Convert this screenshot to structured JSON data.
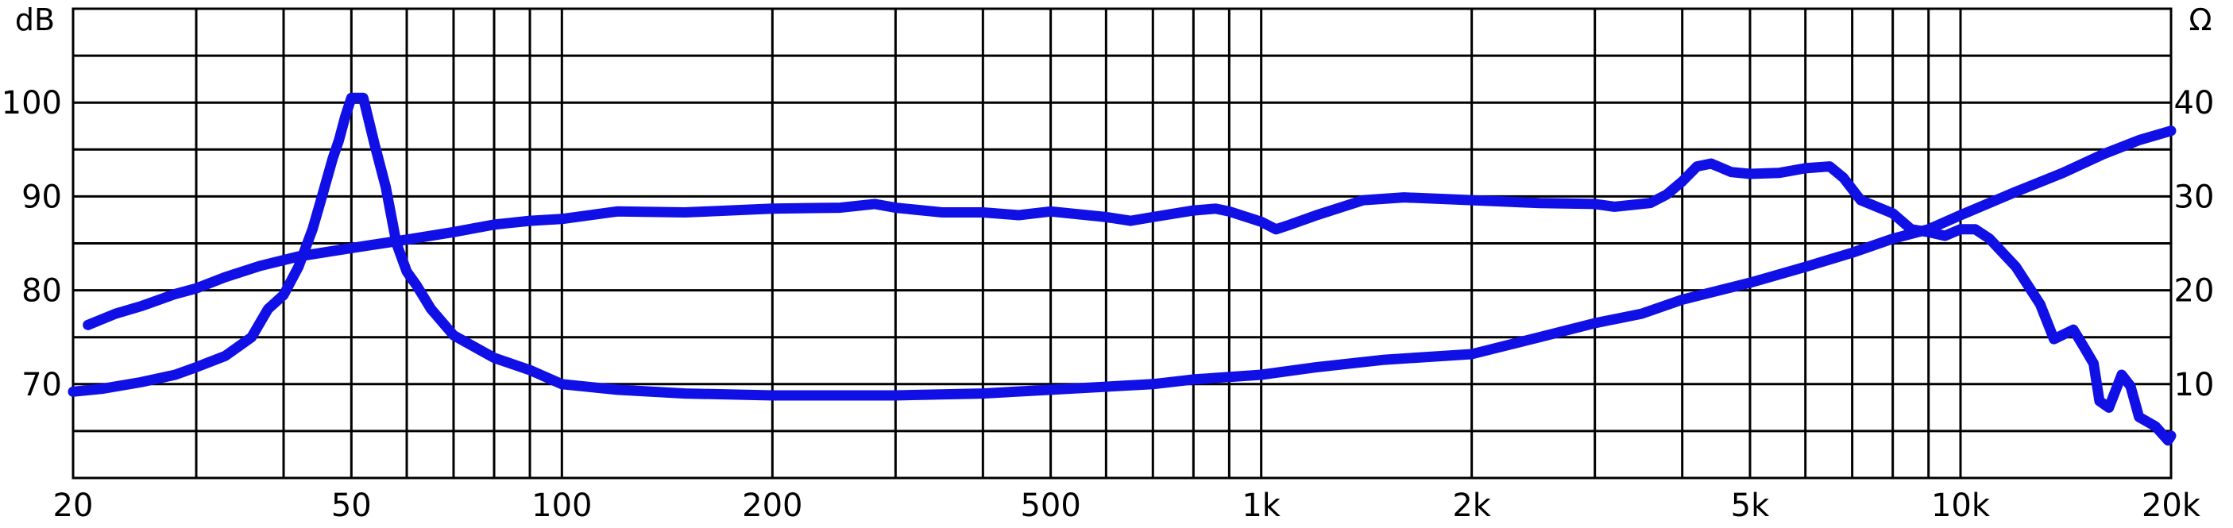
{
  "chart_data": {
    "type": "line",
    "x_scale": "log",
    "grid": true,
    "legend": "none",
    "x_ticks": [
      {
        "value": 20,
        "label": "20"
      },
      {
        "value": 50,
        "label": "50"
      },
      {
        "value": 100,
        "label": "100"
      },
      {
        "value": 200,
        "label": "200"
      },
      {
        "value": 500,
        "label": "500"
      },
      {
        "value": 1000,
        "label": "1k"
      },
      {
        "value": 2000,
        "label": "2k"
      },
      {
        "value": 5000,
        "label": "5k"
      },
      {
        "value": 10000,
        "label": "10k"
      },
      {
        "value": 20000,
        "label": "20k"
      }
    ],
    "x_range": [
      20,
      20000
    ],
    "left_axis": {
      "unit": "dB",
      "range": [
        60,
        110
      ],
      "ticks": [
        {
          "value": 70,
          "label": "70"
        },
        {
          "value": 80,
          "label": "80"
        },
        {
          "value": 90,
          "label": "90"
        },
        {
          "value": 100,
          "label": "100"
        }
      ]
    },
    "right_axis": {
      "unit": "Ω",
      "range": [
        0,
        50
      ],
      "ticks": [
        {
          "value": 10,
          "label": "10"
        },
        {
          "value": 20,
          "label": "20"
        },
        {
          "value": 30,
          "label": "30"
        },
        {
          "value": 40,
          "label": "40"
        }
      ]
    },
    "series": [
      {
        "axis": "left",
        "color": "#1010e6",
        "points": [
          [
            21,
            76.3
          ],
          [
            23,
            77.5
          ],
          [
            25,
            78.3
          ],
          [
            28,
            79.6
          ],
          [
            30,
            80.2
          ],
          [
            33,
            81.4
          ],
          [
            37,
            82.6
          ],
          [
            42,
            83.6
          ],
          [
            50,
            84.5
          ],
          [
            60,
            85.4
          ],
          [
            70,
            86.2
          ],
          [
            80,
            87.0
          ],
          [
            90,
            87.4
          ],
          [
            100,
            87.6
          ],
          [
            120,
            88.4
          ],
          [
            150,
            88.3
          ],
          [
            200,
            88.7
          ],
          [
            250,
            88.8
          ],
          [
            280,
            89.2
          ],
          [
            300,
            88.8
          ],
          [
            350,
            88.3
          ],
          [
            400,
            88.3
          ],
          [
            450,
            88.0
          ],
          [
            500,
            88.4
          ],
          [
            600,
            87.8
          ],
          [
            650,
            87.4
          ],
          [
            700,
            87.8
          ],
          [
            800,
            88.5
          ],
          [
            860,
            88.7
          ],
          [
            900,
            88.4
          ],
          [
            1000,
            87.3
          ],
          [
            1050,
            86.5
          ],
          [
            1100,
            87.0
          ],
          [
            1200,
            88.0
          ],
          [
            1400,
            89.6
          ],
          [
            1600,
            89.9
          ],
          [
            2000,
            89.6
          ],
          [
            2500,
            89.3
          ],
          [
            3000,
            89.2
          ],
          [
            3200,
            88.9
          ],
          [
            3600,
            89.3
          ],
          [
            3800,
            90.2
          ],
          [
            4000,
            91.6
          ],
          [
            4200,
            93.2
          ],
          [
            4400,
            93.5
          ],
          [
            4700,
            92.6
          ],
          [
            5000,
            92.4
          ],
          [
            5500,
            92.5
          ],
          [
            6000,
            93.0
          ],
          [
            6500,
            93.2
          ],
          [
            6800,
            92.0
          ],
          [
            7200,
            89.6
          ],
          [
            8000,
            88.2
          ],
          [
            8500,
            86.5
          ],
          [
            9000,
            86.2
          ],
          [
            9500,
            85.8
          ],
          [
            10000,
            86.5
          ],
          [
            10500,
            86.5
          ],
          [
            11000,
            85.5
          ],
          [
            12000,
            82.5
          ],
          [
            13000,
            78.5
          ],
          [
            13600,
            74.8
          ],
          [
            14500,
            75.8
          ],
          [
            15000,
            74.0
          ],
          [
            15500,
            72.2
          ],
          [
            15800,
            68.2
          ],
          [
            16300,
            67.5
          ],
          [
            17000,
            71.0
          ],
          [
            17500,
            69.8
          ],
          [
            18000,
            66.5
          ],
          [
            19000,
            65.5
          ],
          [
            19800,
            64.0
          ],
          [
            20000,
            64.5
          ]
        ]
      },
      {
        "axis": "right",
        "color": "#1010e6",
        "points": [
          [
            20,
            9.2
          ],
          [
            22,
            9.5
          ],
          [
            25,
            10.2
          ],
          [
            28,
            11.0
          ],
          [
            30,
            11.8
          ],
          [
            33,
            13.0
          ],
          [
            36,
            15.0
          ],
          [
            38,
            18.0
          ],
          [
            40,
            19.5
          ],
          [
            42,
            22.5
          ],
          [
            44,
            26.5
          ],
          [
            45,
            29.0
          ],
          [
            47,
            34.0
          ],
          [
            48,
            36.0
          ],
          [
            49,
            38.5
          ],
          [
            50,
            40.5
          ],
          [
            52,
            40.5
          ],
          [
            54,
            35.5
          ],
          [
            56,
            31.0
          ],
          [
            58,
            25.0
          ],
          [
            60,
            22.0
          ],
          [
            62,
            20.5
          ],
          [
            65,
            18.0
          ],
          [
            70,
            15.2
          ],
          [
            80,
            12.8
          ],
          [
            90,
            11.5
          ],
          [
            100,
            10.0
          ],
          [
            120,
            9.4
          ],
          [
            150,
            9.0
          ],
          [
            200,
            8.8
          ],
          [
            300,
            8.8
          ],
          [
            400,
            9.0
          ],
          [
            500,
            9.4
          ],
          [
            700,
            10.0
          ],
          [
            800,
            10.5
          ],
          [
            1000,
            11.0
          ],
          [
            1200,
            11.8
          ],
          [
            1500,
            12.6
          ],
          [
            2000,
            13.2
          ],
          [
            2500,
            15.0
          ],
          [
            3000,
            16.5
          ],
          [
            3500,
            17.5
          ],
          [
            4000,
            19.0
          ],
          [
            5000,
            20.8
          ],
          [
            6000,
            22.5
          ],
          [
            7000,
            24.0
          ],
          [
            8000,
            25.5
          ],
          [
            9000,
            26.5
          ],
          [
            10000,
            28.0
          ],
          [
            12000,
            30.5
          ],
          [
            14000,
            32.5
          ],
          [
            16000,
            34.5
          ],
          [
            18000,
            36.0
          ],
          [
            20000,
            37.0
          ]
        ]
      }
    ]
  }
}
